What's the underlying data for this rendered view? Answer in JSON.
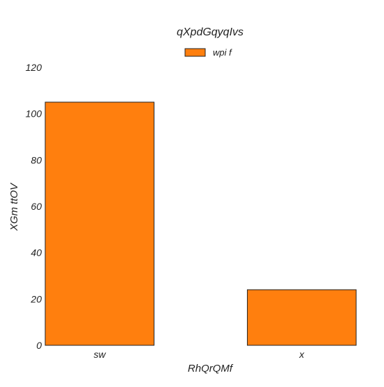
{
  "chart_data": {
    "type": "bar",
    "title": "qXpdGqyqIvs",
    "xlabel": "RhQrQMf",
    "ylabel": "XGm ttOV",
    "categories": [
      "sw",
      "x"
    ],
    "series": [
      {
        "name": "wpi f",
        "values": [
          105,
          24
        ],
        "color": "#ff7f0e"
      }
    ],
    "ylim": [
      0,
      120
    ],
    "yticks": [
      0,
      20,
      40,
      60,
      80,
      100,
      120
    ],
    "grid": false,
    "legend": "top-center",
    "bar_edge_color": "#222222"
  }
}
